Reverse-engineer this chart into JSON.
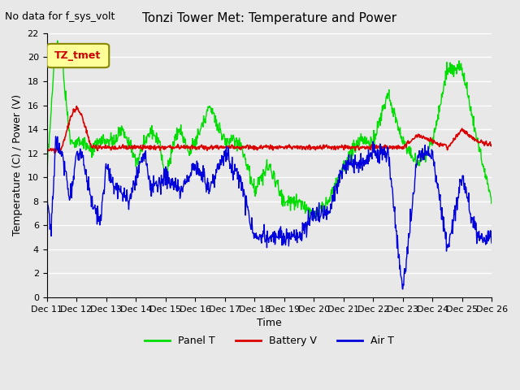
{
  "title": "Tonzi Tower Met: Temperature and Power",
  "top_left_text": "No data for f_sys_volt",
  "ylabel": "Temperature (C) / Power (V)",
  "xlabel": "Time",
  "ylim": [
    0,
    22
  ],
  "yticks": [
    0,
    2,
    4,
    6,
    8,
    10,
    12,
    14,
    16,
    18,
    20,
    22
  ],
  "background_color": "#e8e8e8",
  "plot_bg_color": "#e8e8e8",
  "legend_label": "TZ_tmet",
  "line_colors": {
    "panel": "#00dd00",
    "battery": "#dd0000",
    "air": "#0000dd"
  },
  "x_tick_labels": [
    "Dec 11",
    "Dec 12",
    "Dec 13",
    "Dec 14",
    "Dec 15",
    "Dec 16",
    "Dec 17",
    "Dec 18",
    "Dec 19",
    "Dec 20",
    "Dec 21",
    "Dec 22",
    "Dec 23",
    "Dec 24",
    "Dec 25",
    "Dec 26"
  ],
  "legend_entries": [
    "Panel T",
    "Battery V",
    "Air T"
  ]
}
